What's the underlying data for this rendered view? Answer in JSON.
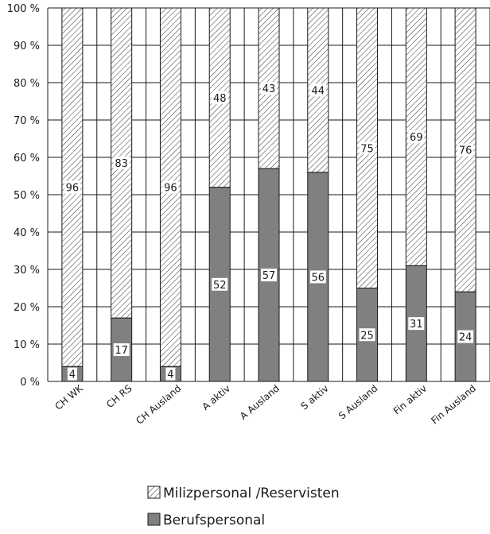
{
  "chart_data": {
    "type": "bar",
    "stacked": true,
    "percent": true,
    "categories": [
      "CH WK",
      "CH RS",
      "CH Ausland",
      "A aktiv",
      "A Ausland",
      "S aktiv",
      "S Ausland",
      "Fin aktiv",
      "Fin Ausland"
    ],
    "series": [
      {
        "name": "Berufspersonal",
        "values": [
          4,
          17,
          4,
          52,
          57,
          56,
          25,
          31,
          24
        ],
        "pattern": "solid",
        "color": "#808080"
      },
      {
        "name": "Milizpersonal /Reservisten",
        "values": [
          96,
          83,
          96,
          48,
          43,
          44,
          75,
          69,
          76
        ],
        "pattern": "hatched",
        "color": "#ffffff"
      }
    ],
    "y_ticks": [
      "0 %",
      "10 %",
      "20 %",
      "30 %",
      "40 %",
      "50 %",
      "60 %",
      "70 %",
      "80 %",
      "90 %",
      "100 %"
    ],
    "ylim": [
      0,
      100
    ],
    "grid": true,
    "legend_position": "bottom-center",
    "legend_order": [
      "Milizpersonal /Reservisten",
      "Berufspersonal"
    ]
  }
}
